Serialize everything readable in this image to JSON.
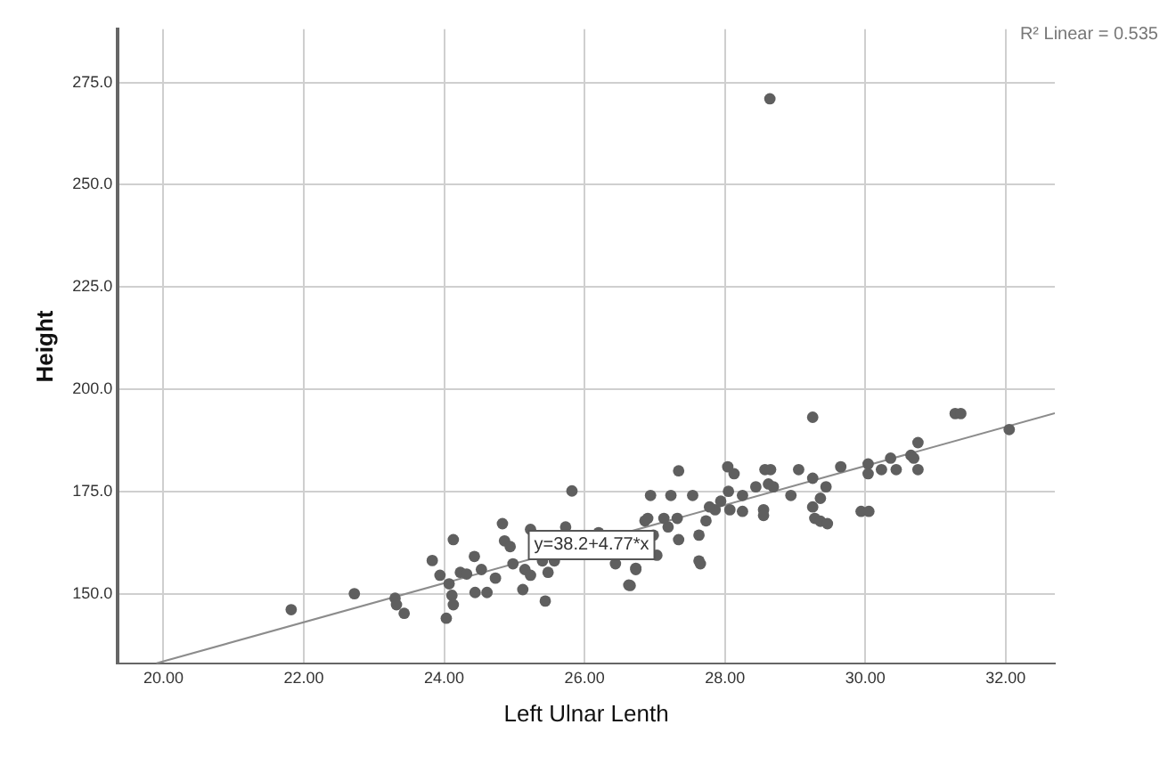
{
  "chart_data": {
    "type": "scatter",
    "xlabel": "Left Ulnar Lenth",
    "ylabel": "Height",
    "xlim": [
      19.35,
      32.7
    ],
    "ylim": [
      133,
      288
    ],
    "xticks": [
      {
        "value": 20,
        "label": "20.00"
      },
      {
        "value": 22,
        "label": "22.00"
      },
      {
        "value": 24,
        "label": "24.00"
      },
      {
        "value": 26,
        "label": "26.00"
      },
      {
        "value": 28,
        "label": "28.00"
      },
      {
        "value": 30,
        "label": "30.00"
      },
      {
        "value": 32,
        "label": "32.00"
      }
    ],
    "yticks": [
      {
        "value": 150,
        "label": "150.0"
      },
      {
        "value": 175,
        "label": "175.0"
      },
      {
        "value": 200,
        "label": "200.0"
      },
      {
        "value": 225,
        "label": "225.0"
      },
      {
        "value": 250,
        "label": "250.0"
      },
      {
        "value": 275,
        "label": "275.0"
      }
    ],
    "grid": true,
    "legend": false,
    "marker": "circle",
    "series": [
      {
        "color": "#5f5f5f",
        "x": [
          21.82,
          22.72,
          23.3,
          23.32,
          23.43,
          23.83,
          24.03,
          24.13,
          23.94,
          24.07,
          24.11,
          24.13,
          24.23,
          24.32,
          24.43,
          24.44,
          24.53,
          24.61,
          24.73,
          24.83,
          24.86,
          24.94,
          24.98,
          25.12,
          25.15,
          25.23,
          25.23,
          25.44,
          25.48,
          25.82,
          25.4,
          25.57,
          25.73,
          26.65,
          26.73,
          26.86,
          26.63,
          26.73,
          26.44,
          27.03,
          26.94,
          27.23,
          27.34,
          27.13,
          27.32,
          27.34,
          26.9,
          26.98,
          27.19,
          27.54,
          27.63,
          27.63,
          27.65,
          27.73,
          27.86,
          28.04,
          28.13,
          28.05,
          28.07,
          28.25,
          28.25,
          28.44,
          28.57,
          28.65,
          28.62,
          28.69,
          28.55,
          28.55,
          28.94,
          29.05,
          29.25,
          29.25,
          29.25,
          29.36,
          29.44,
          29.28,
          29.36,
          29.46,
          29.65,
          29.94,
          30.05,
          30.04,
          30.04,
          30.23,
          30.36,
          30.44,
          30.65,
          30.69,
          30.75,
          30.75,
          31.28,
          31.36,
          32.05,
          27.78,
          27.94,
          28.64,
          26.2
        ],
        "values": [
          146.2,
          150.1,
          149,
          147.4,
          145.3,
          158.2,
          144.1,
          163.3,
          154.6,
          152.5,
          149.7,
          147.4,
          155.3,
          154.9,
          159.2,
          150.4,
          156,
          150.4,
          153.9,
          167.2,
          163,
          161.6,
          157.4,
          151.1,
          156,
          154.6,
          165.8,
          148.3,
          155.3,
          175.2,
          158.1,
          158.1,
          166.4,
          152.1,
          156,
          167.9,
          152.2,
          156.3,
          157.4,
          159.5,
          174.1,
          174.1,
          180.1,
          168.5,
          168.5,
          163.3,
          168.5,
          164.4,
          166.4,
          174.1,
          164.4,
          158.1,
          157.4,
          167.9,
          170.6,
          181.1,
          179.4,
          175.1,
          170.6,
          174.1,
          170.2,
          176.2,
          180.4,
          180.4,
          176.9,
          176.2,
          170.6,
          169.2,
          174.1,
          180.4,
          193.2,
          178.3,
          171.3,
          173.4,
          176.2,
          168.5,
          167.8,
          167.2,
          181.1,
          170.2,
          170.2,
          181.8,
          179.4,
          180.4,
          183.2,
          180.4,
          183.9,
          183.2,
          187,
          180.4,
          194.1,
          194.1,
          190.2,
          171.3,
          172.7,
          271,
          165
        ]
      },
      {
        "type": "line",
        "color": "#8c8c8c",
        "marker": "none",
        "x": [
          19.9,
          32.7
        ],
        "values": [
          133.1,
          194.2
        ]
      }
    ],
    "annotations": [
      {
        "text": "y=38.2+4.77*x",
        "x": 26.1,
        "y": 162
      },
      "R² Linear = 0.535"
    ]
  }
}
